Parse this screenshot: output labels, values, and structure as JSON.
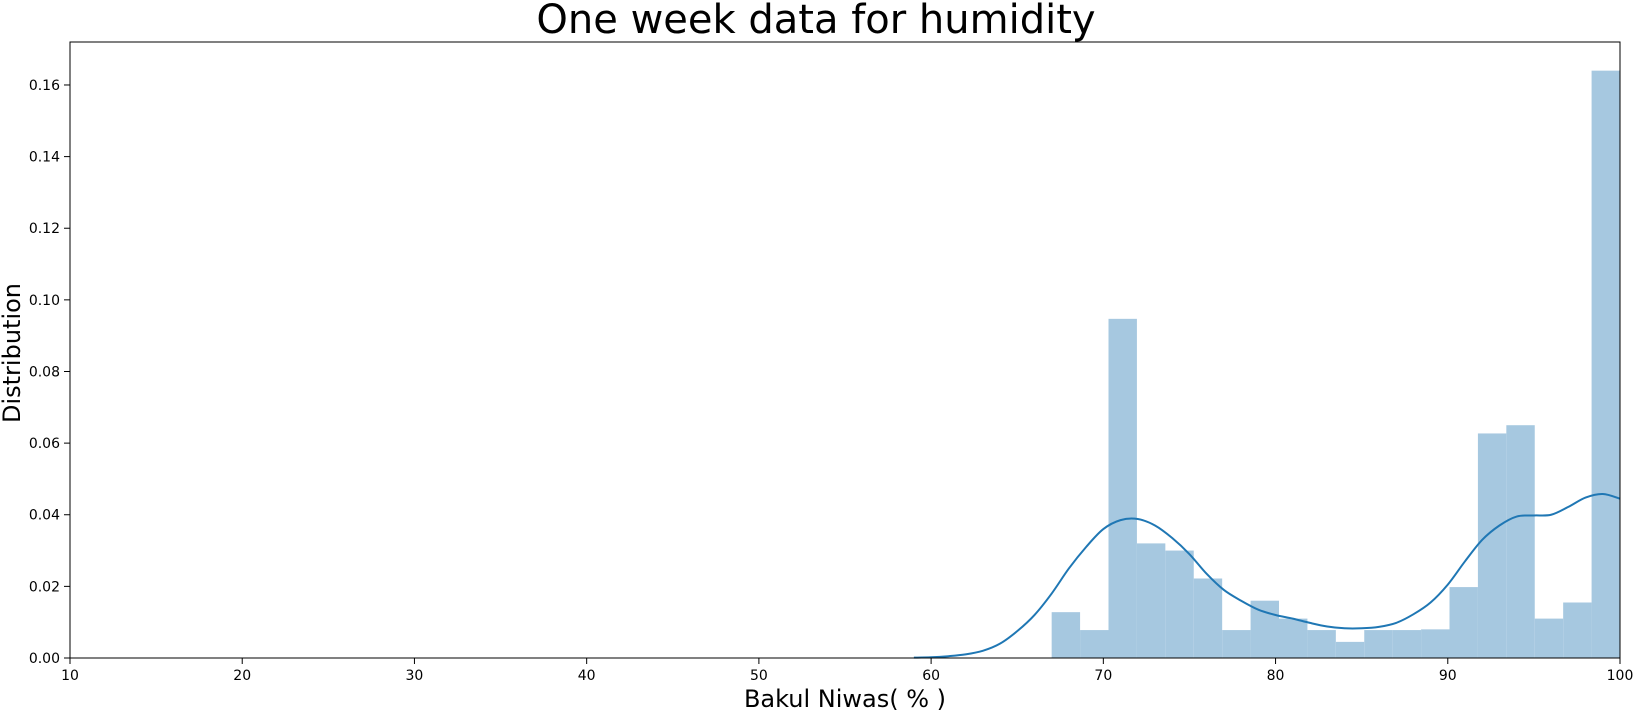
{
  "chart_data": {
    "type": "histogram",
    "title": "One week data for humidity",
    "xlabel": "Bakul Niwas( % )",
    "ylabel": "Distribution",
    "xlim": [
      10,
      100
    ],
    "ylim": [
      0,
      0.172
    ],
    "xticks": [
      10,
      20,
      30,
      40,
      50,
      60,
      70,
      80,
      90,
      100
    ],
    "xtick_labels": [
      "10",
      "20",
      "30",
      "40",
      "50",
      "60",
      "70",
      "80",
      "90",
      "100"
    ],
    "yticks": [
      0,
      0.02,
      0.04,
      0.06,
      0.08,
      0.1,
      0.12,
      0.14,
      0.16
    ],
    "ytick_labels": [
      "0.00",
      "0.02",
      "0.04",
      "0.06",
      "0.08",
      "0.10",
      "0.12",
      "0.14",
      "0.16"
    ],
    "grid": false,
    "colors": {
      "bars": "#a6c8e0",
      "kde": "#1f77b4"
    },
    "histogram": {
      "bin_edges": [
        67.0,
        68.65,
        70.3,
        71.95,
        73.6,
        75.25,
        76.9,
        78.55,
        80.2,
        81.85,
        83.5,
        85.15,
        86.8,
        88.45,
        90.1,
        91.75,
        93.4,
        95.05,
        96.7,
        98.35,
        100.0
      ],
      "values": [
        0.0128,
        0.0078,
        0.0947,
        0.032,
        0.03,
        0.0222,
        0.0078,
        0.016,
        0.011,
        0.0078,
        0.0045,
        0.0078,
        0.0078,
        0.008,
        0.0198,
        0.0627,
        0.065,
        0.011,
        0.0155,
        0.164
      ]
    },
    "kde": {
      "x": [
        59,
        60,
        61,
        62,
        63,
        64,
        65,
        66,
        67,
        68,
        69,
        70,
        71,
        72,
        73,
        74,
        75,
        76,
        77,
        78,
        79,
        80,
        81,
        82,
        83,
        84,
        85,
        86,
        87,
        88,
        89,
        90,
        91,
        92,
        93,
        94,
        95,
        96,
        97,
        98,
        99,
        100
      ],
      "y": [
        0.0001,
        0.0002,
        0.0005,
        0.001,
        0.002,
        0.004,
        0.0075,
        0.012,
        0.018,
        0.025,
        0.031,
        0.036,
        0.0385,
        0.0388,
        0.037,
        0.0335,
        0.029,
        0.0235,
        0.019,
        0.016,
        0.0135,
        0.012,
        0.011,
        0.0098,
        0.0088,
        0.0083,
        0.0083,
        0.0087,
        0.0098,
        0.0122,
        0.0155,
        0.0205,
        0.027,
        0.033,
        0.037,
        0.0395,
        0.0398,
        0.04,
        0.0422,
        0.0448,
        0.0458,
        0.0445
      ]
    }
  }
}
